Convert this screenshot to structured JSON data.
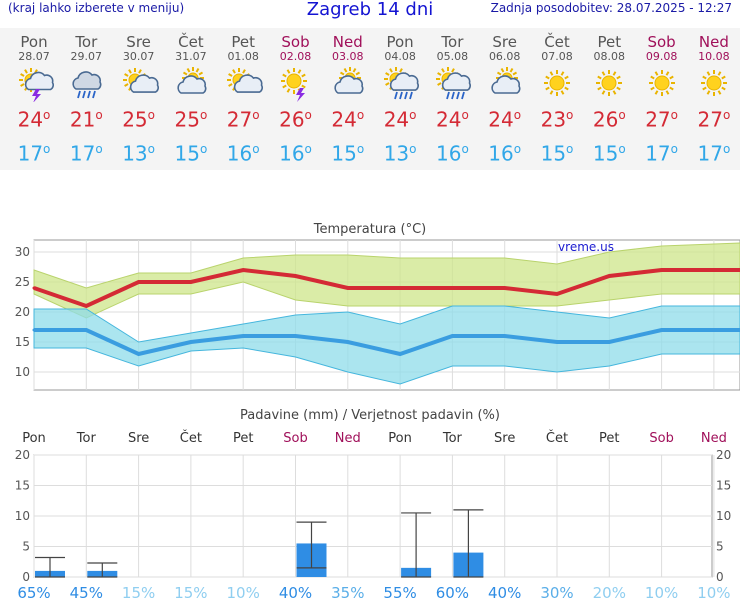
{
  "header": {
    "left_note": "(kraj lahko izberete v meniju)",
    "title": "Zagreb 14 dni",
    "updated": "Zadnja posodobitev: 28.07.2025 - 12:27"
  },
  "colors": {
    "max": "#d42a35",
    "min": "#31a7e8",
    "weekend": "#a0105a",
    "bar": "#2f8de4"
  },
  "days": [
    {
      "name": "Pon",
      "date": "28.07",
      "icon": "sun-cloud-storm-icon",
      "max": "24",
      "min": "17",
      "weekend": false
    },
    {
      "name": "Tor",
      "date": "29.07",
      "icon": "cloud-rain-icon",
      "max": "21",
      "min": "17",
      "weekend": false
    },
    {
      "name": "Sre",
      "date": "30.07",
      "icon": "sun-cloud-icon",
      "max": "25",
      "min": "13",
      "weekend": false
    },
    {
      "name": "Čet",
      "date": "31.07",
      "icon": "cloud-sun-icon",
      "max": "25",
      "min": "15",
      "weekend": false
    },
    {
      "name": "Pet",
      "date": "01.08",
      "icon": "sun-cloud-icon",
      "max": "27",
      "min": "16",
      "weekend": false
    },
    {
      "name": "Sob",
      "date": "02.08",
      "icon": "sun-storm-icon",
      "max": "26",
      "min": "16",
      "weekend": true
    },
    {
      "name": "Ned",
      "date": "03.08",
      "icon": "cloud-sun-icon",
      "max": "24",
      "min": "15",
      "weekend": true
    },
    {
      "name": "Pon",
      "date": "04.08",
      "icon": "sun-cloud-rain-icon",
      "max": "24",
      "min": "13",
      "weekend": false
    },
    {
      "name": "Tor",
      "date": "05.08",
      "icon": "sun-cloud-rain-icon",
      "max": "24",
      "min": "16",
      "weekend": false
    },
    {
      "name": "Sre",
      "date": "06.08",
      "icon": "cloud-sun-icon",
      "max": "24",
      "min": "16",
      "weekend": false
    },
    {
      "name": "Čet",
      "date": "07.08",
      "icon": "sun-icon",
      "max": "23",
      "min": "15",
      "weekend": false
    },
    {
      "name": "Pet",
      "date": "08.08",
      "icon": "sun-icon",
      "max": "26",
      "min": "15",
      "weekend": false
    },
    {
      "name": "Sob",
      "date": "09.08",
      "icon": "sun-icon",
      "max": "27",
      "min": "17",
      "weekend": true
    },
    {
      "name": "Ned",
      "date": "10.08",
      "icon": "sun-icon",
      "max": "27",
      "min": "17",
      "weekend": true
    }
  ],
  "chart_data": [
    {
      "type": "line",
      "title": "Temperatura (°C)",
      "watermark": "vreme.us",
      "x": [
        "Pon",
        "Tor",
        "Sre",
        "Čet",
        "Pet",
        "Sob",
        "Ned",
        "Pon",
        "Tor",
        "Sre",
        "Čet",
        "Pet",
        "Sob",
        "Ned"
      ],
      "ylim": [
        7,
        32
      ],
      "yticks": [
        10,
        15,
        20,
        25,
        30
      ],
      "series": [
        {
          "values": [
            24,
            21,
            25,
            25,
            27,
            26,
            24,
            24,
            24,
            24,
            23,
            26,
            27,
            27
          ],
          "band_low": [
            27,
            24,
            26.5,
            26.5,
            29,
            29.5,
            29.5,
            29,
            29,
            29,
            28,
            30,
            31,
            31.5
          ],
          "band_high": [
            23,
            19,
            23,
            23,
            25,
            22,
            21,
            21,
            21,
            21,
            21,
            22,
            23,
            23
          ]
        },
        {
          "values": [
            17,
            17,
            13,
            15,
            16,
            16,
            15,
            13,
            16,
            16,
            15,
            15,
            17,
            17
          ],
          "band_low": [
            20.5,
            20.5,
            15,
            16.5,
            18,
            19.5,
            20,
            18,
            21,
            21,
            20,
            19,
            21,
            21
          ],
          "band_high": [
            14,
            14,
            11,
            13.5,
            14,
            12.5,
            10,
            8,
            11,
            11,
            10,
            11,
            13,
            13
          ]
        }
      ]
    },
    {
      "type": "bar",
      "title": "Padavine (mm) / Verjetnost padavin (%)",
      "categories": [
        "Pon",
        "Tor",
        "Sre",
        "Čet",
        "Pet",
        "Sob",
        "Ned",
        "Pon",
        "Tor",
        "Sre",
        "Čet",
        "Pet",
        "Sob",
        "Ned"
      ],
      "ylim": [
        0,
        20
      ],
      "yticks": [
        0,
        5,
        10,
        15,
        20
      ],
      "values": [
        1,
        1,
        0,
        0,
        0,
        5.5,
        0,
        1.5,
        4,
        0,
        0,
        0,
        0,
        0
      ],
      "err_low": [
        0,
        0,
        null,
        null,
        null,
        1.5,
        null,
        0,
        0,
        null,
        null,
        null,
        null,
        null
      ],
      "err_high": [
        3.2,
        2.3,
        null,
        null,
        null,
        9,
        null,
        10.5,
        11,
        null,
        null,
        null,
        null,
        null
      ],
      "probability": [
        "65%",
        "45%",
        "15%",
        "15%",
        "10%",
        "40%",
        "35%",
        "55%",
        "60%",
        "40%",
        "30%",
        "20%",
        "10%",
        "10%"
      ],
      "probability_values": [
        65,
        45,
        15,
        15,
        10,
        40,
        35,
        55,
        60,
        40,
        30,
        20,
        10,
        10
      ]
    }
  ]
}
